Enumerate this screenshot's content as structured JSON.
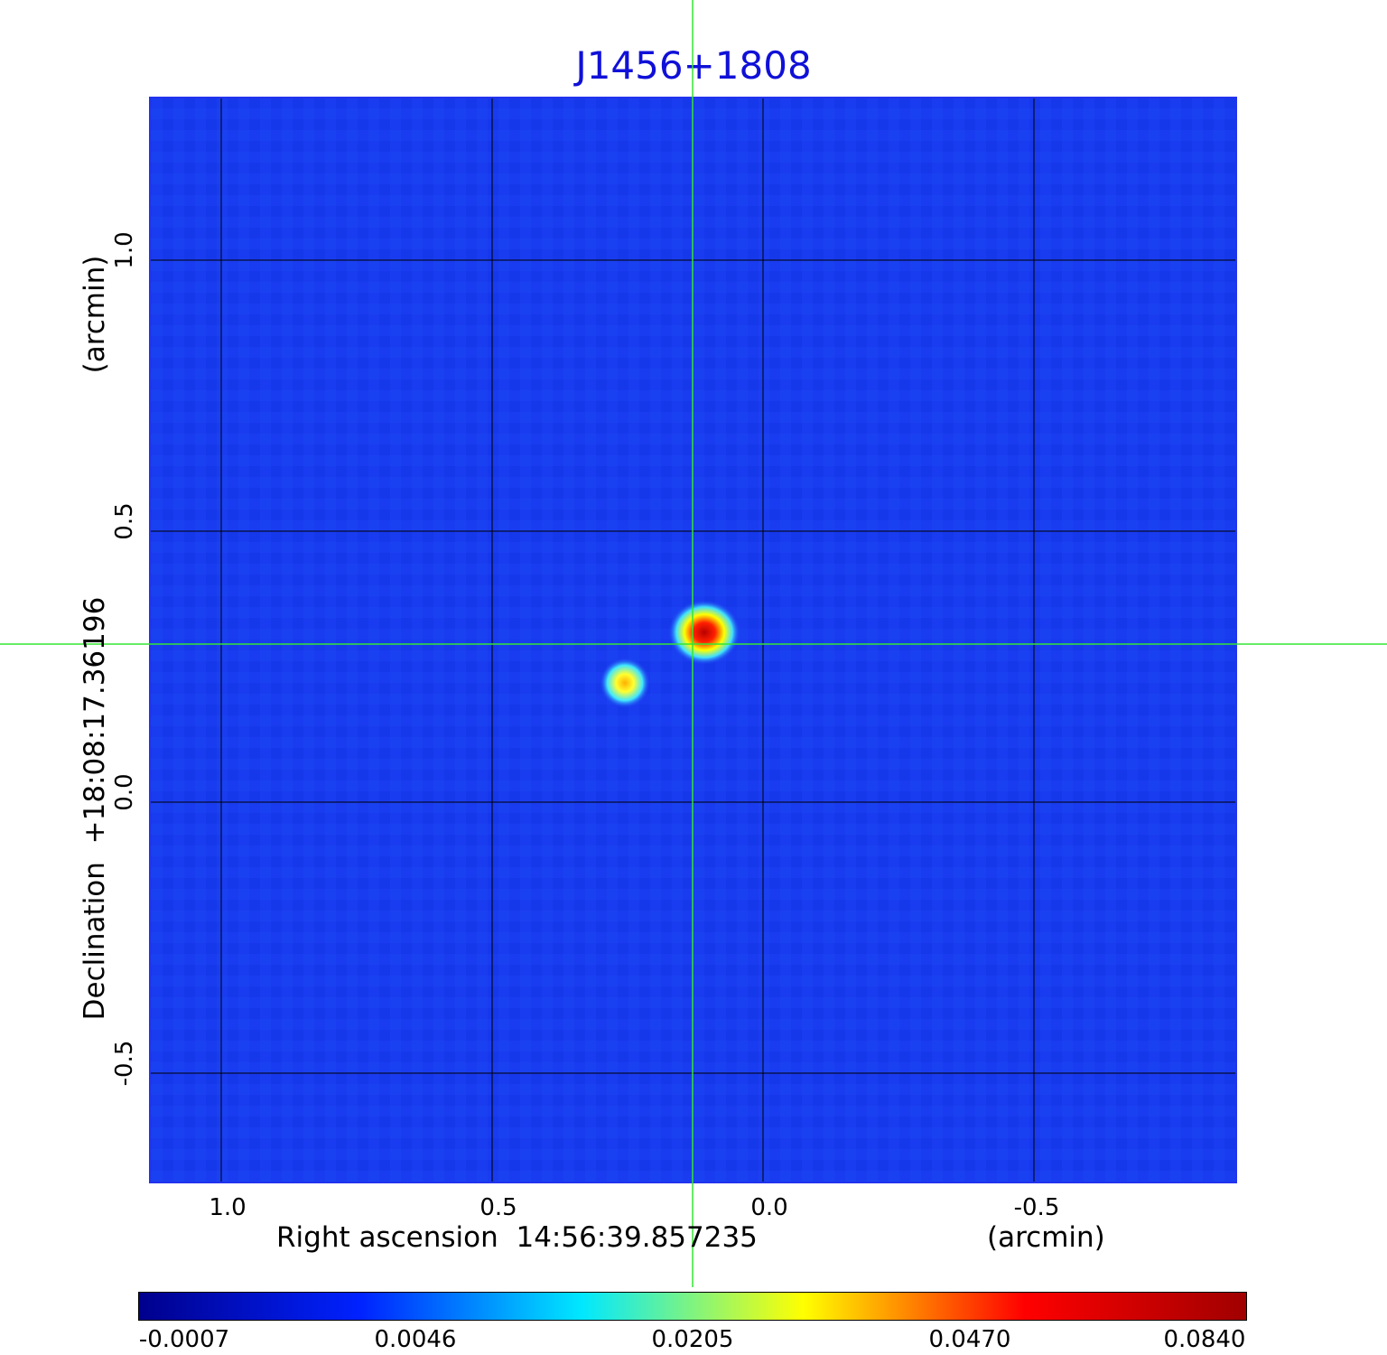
{
  "title": "J1456+1808",
  "x_axis": {
    "label": "Right ascension  14:56:39.857235",
    "unit": "(arcmin)",
    "ticks": [
      "1.0",
      "0.5",
      "0.0",
      "-0.5"
    ]
  },
  "y_axis": {
    "label": "Declination  +18:08:17.36196",
    "unit": "(arcmin)",
    "ticks": [
      "1.0",
      "0.5",
      "0.0",
      "-0.5"
    ]
  },
  "colorbar": {
    "ticks": [
      "-0.0007",
      "0.0046",
      "0.0205",
      "0.0470",
      "0.0840"
    ],
    "colors": [
      "#00008c",
      "#0022ff",
      "#00e8ff",
      "#ffff00",
      "#ff0000",
      "#a00000"
    ]
  },
  "colors": {
    "background_field": "#1a3cf0",
    "grid": "#000000",
    "crosshair": "#33e633",
    "title": "#1010d8"
  }
}
